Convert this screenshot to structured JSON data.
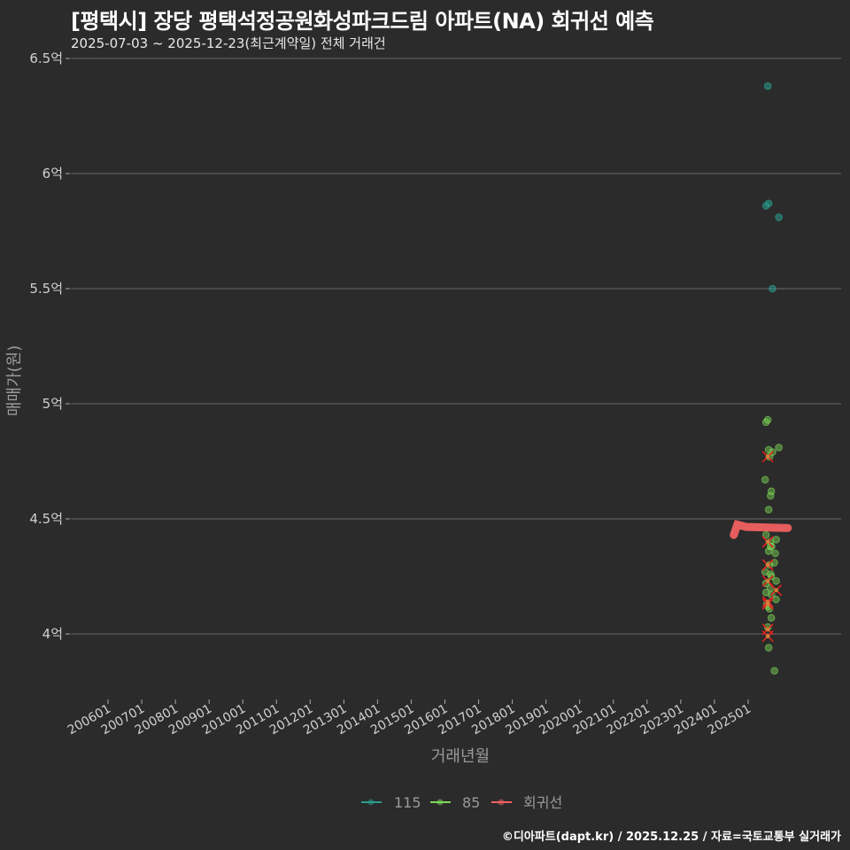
{
  "header": {
    "title": "[평택시] 장당 평택석정공원화성파크드림 아파트(NA) 회귀선 예측",
    "subtitle": "2025-07-03 ~ 2025-12-23(최근계약일) 전체 거래건"
  },
  "caption": "©디아파트(dapt.kr) / 2025.12.25 / 자료=국토교통부 실거래가",
  "colors": {
    "background": "#2b2b2b",
    "grid": "#6a6a6a",
    "series_115": "#2a9d8f",
    "series_85": "#7ed957",
    "regression": "#f06060",
    "cross": "#e02020"
  },
  "chart_data": {
    "type": "scatter",
    "title": "[평택시] 장당 평택석정공원화성파크드림 아파트(NA) 회귀선 예측",
    "subtitle": "2025-07-03 ~ 2025-12-23(최근계약일) 전체 거래건",
    "xlabel": "거래년월",
    "ylabel": "매매가(원)",
    "x_tick_labels": [
      "200601",
      "200701",
      "200801",
      "200901",
      "201001",
      "201101",
      "201201",
      "201301",
      "201401",
      "201501",
      "201601",
      "201701",
      "201801",
      "201901",
      "202001",
      "202101",
      "202201",
      "202301",
      "202401",
      "202501"
    ],
    "y_tick_labels": [
      "4억",
      "4.5억",
      "5억",
      "5.5억",
      "6억",
      "6.5억"
    ],
    "y_ticks": [
      4.0,
      4.5,
      5.0,
      5.5,
      6.0,
      6.5
    ],
    "ylim": [
      3.72,
      6.6
    ],
    "y_unit": "억",
    "grid": true,
    "legend_position": "bottom",
    "legend": [
      "115",
      "85",
      "회귀선"
    ],
    "series": [
      {
        "name": "115",
        "x": [
          "202508",
          "202508",
          "202508",
          "202511",
          "202510"
        ],
        "y": [
          6.38,
          5.86,
          5.87,
          5.81,
          5.5
        ]
      },
      {
        "name": "85",
        "x": [
          "202508",
          "202508",
          "202508",
          "202511",
          "202510",
          "202508",
          "202508",
          "202508",
          "202509",
          "202508",
          "202508",
          "202508",
          "202511",
          "202510",
          "202508",
          "202508",
          "202511",
          "202508",
          "202508",
          "202508",
          "202509",
          "202510",
          "202508",
          "202508",
          "202511",
          "202508",
          "202509",
          "202510",
          "202508",
          "202508",
          "202509",
          "202508",
          "202508",
          "202508",
          "202511"
        ],
        "y": [
          4.93,
          4.92,
          4.8,
          4.81,
          4.79,
          4.77,
          4.67,
          4.62,
          4.6,
          4.54,
          4.43,
          4.4,
          4.41,
          4.38,
          4.36,
          4.38,
          4.35,
          4.3,
          4.27,
          4.25,
          4.26,
          4.31,
          4.22,
          4.2,
          4.23,
          4.18,
          4.17,
          4.15,
          4.13,
          4.11,
          4.12,
          4.07,
          4.03,
          3.94,
          3.84
        ]
      },
      {
        "name": "회귀선",
        "type": "line",
        "x": [
          "202508",
          "202509",
          "202510",
          "202511",
          "202512"
        ],
        "y": [
          4.46,
          4.46,
          4.46,
          4.46,
          4.46
        ]
      }
    ],
    "cross_markers": {
      "x": [
        "202508",
        "202508",
        "202508",
        "202508",
        "202508",
        "202511",
        "202508",
        "202508",
        "202508"
      ],
      "y": [
        4.77,
        4.4,
        4.3,
        4.23,
        4.14,
        4.19,
        4.13,
        4.02,
        3.99
      ]
    }
  }
}
